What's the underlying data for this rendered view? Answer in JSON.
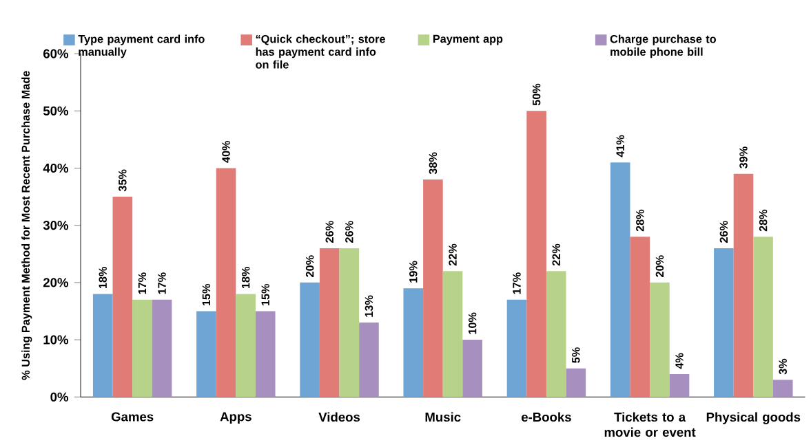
{
  "chart_data": {
    "type": "bar",
    "ylabel": "% Using Payment Method for Most Recent Purchase Made",
    "categories": [
      "Games",
      "Apps",
      "Videos",
      "Music",
      "e-Books",
      "Tickets to a movie or event",
      "Physical goods"
    ],
    "series": [
      {
        "name": "Type payment card info manually",
        "color": "#6fa5d4",
        "values": [
          18,
          15,
          20,
          19,
          17,
          41,
          26
        ],
        "value_labels": [
          "18%",
          "15%",
          "20%",
          "19%",
          "17%",
          "41%",
          "26%"
        ]
      },
      {
        "name": "“Quick checkout”; store has payment card info on file",
        "color": "#e07b75",
        "values": [
          35,
          40,
          26,
          38,
          50,
          28,
          39
        ],
        "value_labels": [
          "35%",
          "40%",
          "26%",
          "38%",
          "50%",
          "28%",
          "39%"
        ]
      },
      {
        "name": "Payment app",
        "color": "#b7d38a",
        "values": [
          17,
          18,
          26,
          22,
          22,
          20,
          28
        ],
        "value_labels": [
          "17%",
          "18%",
          "26%",
          "22%",
          "22%",
          "20%",
          "28%"
        ]
      },
      {
        "name": "Charge purchase to mobile phone bill",
        "color": "#a78fc0",
        "values": [
          17,
          15,
          13,
          10,
          5,
          4,
          3
        ],
        "value_labels": [
          "17%",
          "15%",
          "13%",
          "10%",
          "5%",
          "4%",
          "3%"
        ]
      }
    ],
    "ylim": [
      0,
      60
    ],
    "yticks": [
      {
        "value": 0,
        "label": "0%"
      },
      {
        "value": 10,
        "label": "10%"
      },
      {
        "value": 20,
        "label": "20%"
      },
      {
        "value": 30,
        "label": "30%"
      },
      {
        "value": 40,
        "label": "40%"
      },
      {
        "value": 50,
        "label": "50%"
      },
      {
        "value": 60,
        "label": "60%"
      }
    ],
    "legend": "top"
  }
}
